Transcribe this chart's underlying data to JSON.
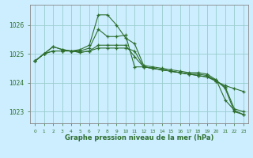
{
  "background_color": "#cceeff",
  "plot_bg_color": "#cceeff",
  "grid_color": "#99cccc",
  "line_color": "#2d6e2d",
  "marker": "+",
  "xlabel": "Graphe pression niveau de la mer (hPa)",
  "xlabel_color": "#2d6e2d",
  "ylabel_ticks": [
    1023,
    1024,
    1025,
    1026
  ],
  "xlim": [
    -0.5,
    23.5
  ],
  "ylim": [
    1022.6,
    1026.7
  ],
  "figsize": [
    3.2,
    2.0
  ],
  "dpi": 100,
  "series": [
    [
      1024.75,
      1025.0,
      1025.25,
      1025.15,
      1025.1,
      1025.15,
      1025.3,
      1026.35,
      1026.35,
      1026.0,
      1025.55,
      1025.35,
      1024.6,
      1024.55,
      1024.5,
      1024.45,
      1024.4,
      1024.35,
      1024.35,
      1024.3,
      1024.1,
      1023.4,
      1023.05,
      1022.9
    ],
    [
      1024.75,
      1025.0,
      1025.25,
      1025.15,
      1025.1,
      1025.1,
      1025.2,
      1025.85,
      1025.6,
      1025.6,
      1025.65,
      1024.55,
      1024.55,
      1024.5,
      1024.45,
      1024.4,
      1024.35,
      1024.3,
      1024.3,
      1024.25,
      1024.05,
      1023.9,
      1023.8,
      1023.7
    ],
    [
      1024.75,
      1025.0,
      1025.1,
      1025.1,
      1025.1,
      1025.05,
      1025.1,
      1025.3,
      1025.3,
      1025.3,
      1025.3,
      1024.9,
      1024.55,
      1024.5,
      1024.45,
      1024.4,
      1024.35,
      1024.3,
      1024.25,
      1024.2,
      1024.05,
      1023.85,
      1023.1,
      1023.0
    ],
    [
      1024.75,
      1025.0,
      1025.1,
      1025.1,
      1025.1,
      1025.05,
      1025.1,
      1025.2,
      1025.2,
      1025.2,
      1025.2,
      1025.1,
      1024.55,
      1024.5,
      1024.45,
      1024.4,
      1024.35,
      1024.3,
      1024.25,
      1024.2,
      1024.1,
      1023.8,
      1023.0,
      1022.9
    ]
  ]
}
